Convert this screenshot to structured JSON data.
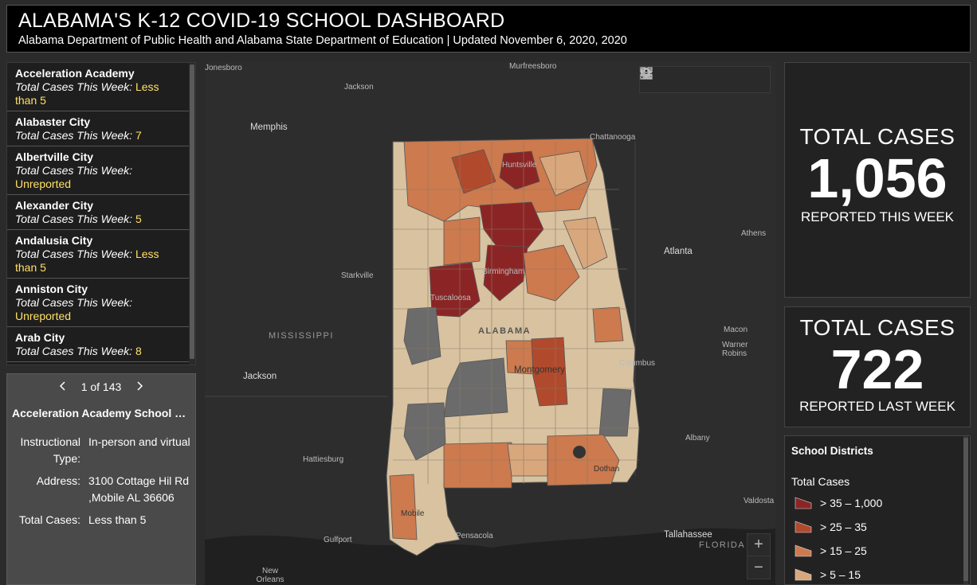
{
  "header": {
    "title": "ALABAMA'S K-12 COVID-19 SCHOOL DASHBOARD",
    "subtitle": "Alabama Department of Public Health and Alabama State Department of Education | Updated November 6, 2020, 2020"
  },
  "list": {
    "cases_label": "Total Cases This Week:",
    "items": [
      {
        "name": "Acceleration Academy",
        "value": "Less than 5"
      },
      {
        "name": "Alabaster City",
        "value": "7"
      },
      {
        "name": "Albertville City",
        "value": "Unreported"
      },
      {
        "name": "Alexander City",
        "value": "5"
      },
      {
        "name": "Andalusia City",
        "value": "Less than 5"
      },
      {
        "name": "Anniston City",
        "value": "Unreported"
      },
      {
        "name": "Arab City",
        "value": "8"
      }
    ]
  },
  "detail": {
    "pager": "1 of 143",
    "title": "Acceleration Academy School Di...",
    "fields": [
      {
        "key": "Instructional Type:",
        "value": "In-person and virtual"
      },
      {
        "key": "Address:",
        "value": "3100 Cottage Hil Rd ,Mobile AL 36606"
      },
      {
        "key": "Total Cases:",
        "value": "Less than 5"
      }
    ]
  },
  "map": {
    "labels": {
      "jonesboro": "Jonesboro",
      "murfreesboro": "Murfreesboro",
      "jackson_tn": "Jackson",
      "memphis": "Memphis",
      "chattanooga": "Chattanooga",
      "huntsville": "Huntsville",
      "athens": "Athens",
      "atlanta": "Atlanta",
      "starkville": "Starkville",
      "birmingham": "Birmingham",
      "tuscaloosa": "Tuscaloosa",
      "mississippi": "MISSISSIPPI",
      "alabama": "ALABAMA",
      "macon": "Macon",
      "warner_robins": "Warner Robins",
      "jackson_ms": "Jackson",
      "montgomery": "Montgomery",
      "columbus": "Columbus",
      "albany": "Albany",
      "hattiesburg": "Hattiesburg",
      "dothan": "Dothan",
      "valdosta": "Valdosta",
      "mobile": "Mobile",
      "gulfport": "Gulfport",
      "pensacola": "Pensacola",
      "tallahassee": "Tallahassee",
      "florida": "FLORIDA",
      "new_orleans": "New Orleans"
    },
    "colors": {
      "class1": "#8b2525",
      "class2": "#b14a2c",
      "class3": "#cc7a4e",
      "class4": "#d9a77c",
      "class5": "#d8c2a0",
      "no_data": "#6b6b6b"
    },
    "zoom_in": "+",
    "zoom_out": "−"
  },
  "stats": {
    "this_week": {
      "label": "TOTAL CASES",
      "value": "1,056",
      "sub": "REPORTED THIS WEEK"
    },
    "last_week": {
      "label": "TOTAL CASES",
      "value": "722",
      "sub": "REPORTED LAST WEEK"
    }
  },
  "legend": {
    "title": "School Districts",
    "subtitle": "Total Cases",
    "items": [
      {
        "label": "> 35 – 1,000",
        "color": "#8b2525"
      },
      {
        "label": "> 25 – 35",
        "color": "#b14a2c"
      },
      {
        "label": "> 15 – 25",
        "color": "#cc7a4e"
      },
      {
        "label": "> 5 – 15",
        "color": "#d9a77c"
      }
    ]
  }
}
